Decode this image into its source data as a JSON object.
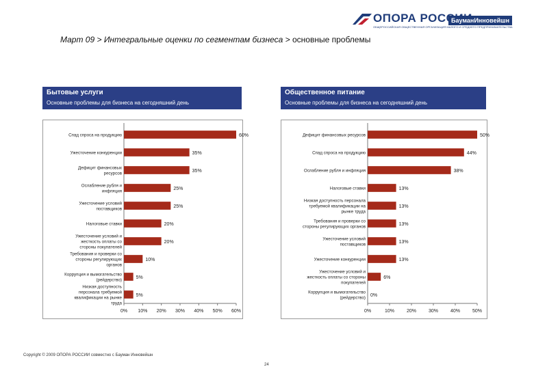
{
  "header": {
    "logo_name": "ОПОРА РОССИИ",
    "logo_subtitle": "ОБЩЕРОССИЙСКАЯ ОБЩЕСТВЕННАЯ ОРГАНИЗАЦИЯ МАЛОГО И СРЕДНЕГО ПРЕДПРИНИМАТЕЛЬСТВА",
    "partner_badge": "БауманИнновейшн",
    "title_prefix": "Март 09 > Интегральные оценки по сегментам бизнеса > ",
    "title_suffix": "основные проблемы"
  },
  "panels": [
    {
      "title": "Бытовые услуги",
      "subtitle": "Основные проблемы для бизнеса на сегодняшний день"
    },
    {
      "title": "Общественное питание",
      "subtitle": "Основные проблемы для бизнеса на сегодняшний день"
    }
  ],
  "chart_data": [
    {
      "type": "bar",
      "orientation": "horizontal",
      "title": "Бытовые услуги",
      "categories": [
        "Спад спроса на продукцию",
        "Ужесточение конкуренции",
        "Дефицит финансовых ресурсов",
        "Ослабление рубля и инфляция",
        "Ужесточение условий поставщиков",
        "Налоговые ставки",
        "Ужесточение условий и жесткость оплаты со стороны покупателей",
        "Требования и проверки со стороны регулирующих органов",
        "Коррупция и вымогательство (рейдерство)",
        "Низкая доступность персонала требуемой квалификации на рынке труда"
      ],
      "values": [
        60,
        35,
        35,
        25,
        25,
        20,
        20,
        10,
        5,
        5
      ],
      "data_labels": [
        "60%",
        "35%",
        "35%",
        "25%",
        "25%",
        "20%",
        "20%",
        "10%",
        "5%",
        "5%"
      ],
      "xlim": [
        0,
        60
      ],
      "ticks": [
        "0%",
        "10%",
        "20%",
        "30%",
        "40%",
        "50%",
        "60%"
      ],
      "bar_color": "#a52a1a"
    },
    {
      "type": "bar",
      "orientation": "horizontal",
      "title": "Общественное питание",
      "categories": [
        "Дефицит финансовых ресурсов",
        "Спад спроса на продукцию",
        "Ослабление рубля и инфляция",
        "Налоговые ставки",
        "Низкая доступность персонала требуемой квалификации на рынке труда",
        "Требования и проверки со стороны регулирующих органов",
        "Ужесточение условий поставщиков",
        "Ужесточение конкуренции",
        "Ужесточение условий и жесткость оплаты со стороны покупателей",
        "Коррупция и вымогательство (рейдерство)"
      ],
      "values": [
        50,
        44,
        38,
        13,
        13,
        13,
        13,
        13,
        6,
        0
      ],
      "data_labels": [
        "50%",
        "44%",
        "38%",
        "13%",
        "13%",
        "13%",
        "13%",
        "13%",
        "6%",
        "0%"
      ],
      "xlim": [
        0,
        50
      ],
      "ticks": [
        "0%",
        "10%",
        "20%",
        "30%",
        "40%",
        "50%"
      ],
      "bar_color": "#a52a1a"
    }
  ],
  "footer": {
    "copyright": "Copyright © 2009  ОПОРА РОССИИ совместно с Бауман Инновейшн",
    "page_number": "24"
  }
}
